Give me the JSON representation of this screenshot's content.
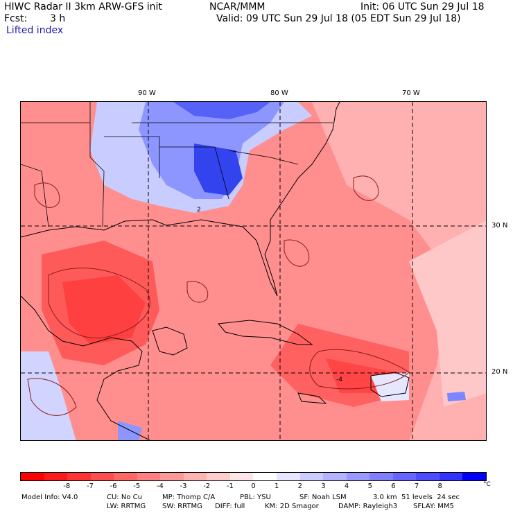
{
  "header": {
    "title": "HIWC Radar II 3km ARW-GFS init",
    "org": "NCAR/MMM",
    "init": "Init: 06 UTC Sun 29 Jul 18",
    "fcst_label": "Fcst:",
    "fcst_value": "3 h",
    "valid": "Valid: 09 UTC Sun 29 Jul 18 (05 EDT Sun 29 Jul 18)",
    "field": "Lifted index"
  },
  "grid": {
    "lon_labels": [
      "90 W",
      "80 W",
      "70 W"
    ],
    "lat_labels": [
      "30 N",
      "20 N"
    ]
  },
  "contour_labels": [
    "2",
    "-4"
  ],
  "colorbar": {
    "ticks": [
      "-8",
      "-7",
      "-6",
      "-5",
      "-4",
      "-3",
      "-2",
      "-1",
      "0",
      "1",
      "2",
      "3",
      "4",
      "5",
      "6",
      "7",
      "8"
    ],
    "unit": "°C",
    "colors": [
      "#ff0000",
      "#ff1a1a",
      "#ff3333",
      "#ff4d4d",
      "#ff6666",
      "#ff8080",
      "#ff9999",
      "#ffb3b3",
      "#ffcccc",
      "#ffe6e6",
      "#ffffff",
      "#e6e6ff",
      "#ccccff",
      "#b3b3ff",
      "#9999ff",
      "#8080ff",
      "#6666ff",
      "#4d4dff",
      "#3333ff",
      "#0000ff"
    ]
  },
  "footer": {
    "line1": [
      "Model Info: V4.0",
      "CU: No Cu",
      "MP: Thomp C/A",
      "PBL: YSU",
      "SF: Noah LSM",
      "3.0 km  51 levels  24 sec"
    ],
    "line2": [
      "LW: RRTMG",
      "SW: RRTMG",
      "DIFF: full",
      "KM: 2D Smagor",
      "DAMP: Rayleigh3",
      "SFLAY: MM5"
    ]
  },
  "colors": {
    "unstable": "#ff6b6b",
    "stable": "#3344ee",
    "contour": "#8b1a1a",
    "border": "#000000"
  }
}
